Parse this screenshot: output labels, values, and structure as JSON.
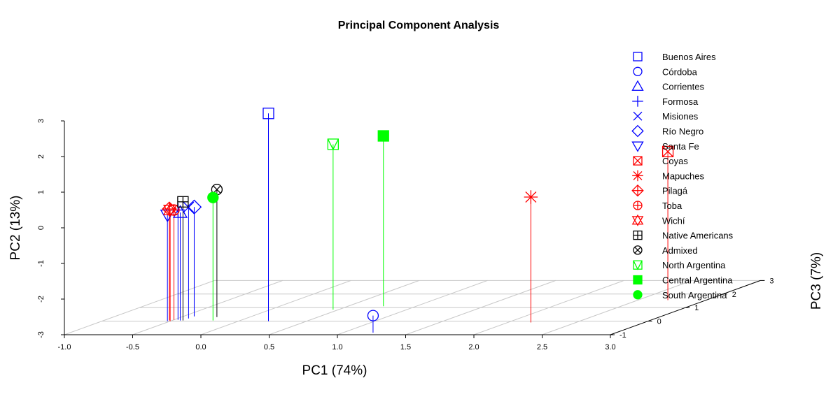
{
  "chart_data": {
    "type": "scatter3d",
    "title": "Principal Component Analysis",
    "xlabel": "PC1 (74%)",
    "ylabel": "PC2 (13%)",
    "zlabel": "PC3 (7%)",
    "xlim": [
      -1.0,
      3.0
    ],
    "ylim": [
      -3,
      3
    ],
    "zlim": [
      -1,
      3
    ],
    "x_ticks": [
      "-1.0",
      "-0.5",
      "0.0",
      "0.5",
      "1.0",
      "1.5",
      "2.0",
      "2.5",
      "3.0"
    ],
    "y_ticks": [
      "-3",
      "-2",
      "-1",
      "0",
      "1",
      "2",
      "3"
    ],
    "z_ticks": [
      "-1",
      "0",
      "1",
      "2",
      "3"
    ],
    "grid": true,
    "legend_position": "top-right",
    "series": [
      {
        "name": "Buenos Aires",
        "symbol": "square",
        "color": "#0000ff",
        "x": 0.22,
        "y": 2.83,
        "z": 0.0
      },
      {
        "name": "Córdoba",
        "symbol": "circle",
        "color": "#0000ff",
        "x": 1.22,
        "y": -2.52,
        "z": -0.85
      },
      {
        "name": "Corrientes",
        "symbol": "triangle",
        "color": "#0000ff",
        "x": -0.44,
        "y": 0.03,
        "z": 0.05
      },
      {
        "name": "Formosa",
        "symbol": "plus",
        "color": "#0000ff",
        "x": -0.47,
        "y": 0.08,
        "z": 0.1
      },
      {
        "name": "Misiones",
        "symbol": "cross",
        "color": "#0000ff",
        "x": -0.42,
        "y": 0.12,
        "z": 0.2
      },
      {
        "name": "Río Negro",
        "symbol": "diamond",
        "color": "#0000ff",
        "x": -0.42,
        "y": 0.07,
        "z": 0.35
      },
      {
        "name": "Santa Fe",
        "symbol": "triangle-down",
        "color": "#0000ff",
        "x": -0.52,
        "y": -0.02,
        "z": 0.0
      },
      {
        "name": "Coyas",
        "symbol": "square-x",
        "color": "#ff0000",
        "x": 2.72,
        "y": 1.17,
        "z": 1.55
      },
      {
        "name": "Mapuches",
        "symbol": "asterisk",
        "color": "#ff0000",
        "x": 2.17,
        "y": 0.52,
        "z": -0.1
      },
      {
        "name": "Pilagá",
        "symbol": "diamond-plus",
        "color": "#ff0000",
        "x": -0.52,
        "y": 0.13,
        "z": 0.05
      },
      {
        "name": "Toba",
        "symbol": "circle-plus",
        "color": "#ff0000",
        "x": -0.5,
        "y": 0.08,
        "z": 0.1
      },
      {
        "name": "Wichí",
        "symbol": "star-of-david",
        "color": "#ff0000",
        "x": -0.5,
        "y": 0.12,
        "z": 0.0
      },
      {
        "name": "Native Americans",
        "symbol": "square-plus",
        "color": "#000000",
        "x": -0.42,
        "y": 0.33,
        "z": 0.05
      },
      {
        "name": "Admixed",
        "symbol": "circle-x",
        "color": "#000000",
        "x": -0.24,
        "y": 0.58,
        "z": 0.3
      },
      {
        "name": "North Argentina",
        "symbol": "square-triangle",
        "color": "#00ff00",
        "x": 0.46,
        "y": 1.64,
        "z": 0.85
      },
      {
        "name": "Central Argentina",
        "symbol": "filled-square",
        "color": "#00ff00",
        "x": 0.76,
        "y": 1.78,
        "z": 1.1
      },
      {
        "name": "South Argentina",
        "symbol": "filled-circle",
        "color": "#00ff00",
        "x": -0.2,
        "y": 0.45,
        "z": 0.05
      }
    ]
  }
}
